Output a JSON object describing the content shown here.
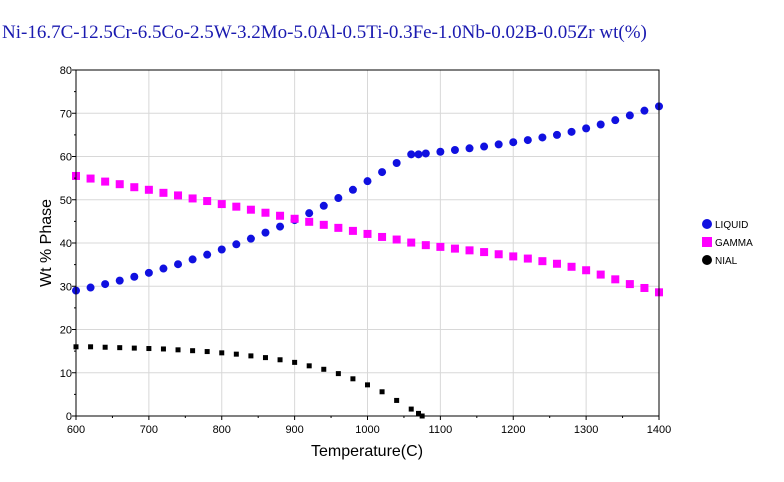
{
  "colors": {
    "title": "#1a1ab0",
    "grid": "#d8d8d8",
    "axis": "#000000",
    "liquid": "#1010e0",
    "gamma": "#ff00ff",
    "nial": "#000000"
  },
  "chart_data": {
    "type": "scatter",
    "title": "Ni-16.7C-12.5Cr-6.5Co-2.5W-3.2Mo-5.0Al-0.5Ti-0.3Fe-1.0Nb-0.02B-0.05Zr wt(%)",
    "xlabel": "Temperature(C)",
    "ylabel": "Wt % Phase",
    "xlim": [
      600,
      1400
    ],
    "ylim": [
      0,
      80
    ],
    "xticks": [
      "600",
      "700",
      "800",
      "900",
      "1000",
      "1100",
      "1200",
      "1300",
      "1400"
    ],
    "yticks": [
      "0",
      "10",
      "20",
      "30",
      "40",
      "50",
      "60",
      "70",
      "80"
    ],
    "grid": true,
    "legend_position": "right",
    "series": [
      {
        "name": "LIQUID",
        "marker": "circle",
        "color": "#1010e0",
        "x": [
          600,
          620,
          640,
          660,
          680,
          700,
          720,
          740,
          760,
          780,
          800,
          820,
          840,
          860,
          880,
          900,
          920,
          940,
          960,
          980,
          1000,
          1020,
          1040,
          1060,
          1070,
          1080,
          1100,
          1120,
          1140,
          1160,
          1180,
          1200,
          1220,
          1240,
          1260,
          1280,
          1300,
          1320,
          1340,
          1360,
          1380,
          1400
        ],
        "y": [
          29.0,
          29.7,
          30.5,
          31.3,
          32.2,
          33.1,
          34.1,
          35.1,
          36.2,
          37.3,
          38.5,
          39.7,
          41.0,
          42.4,
          43.8,
          45.3,
          46.9,
          48.6,
          50.4,
          52.3,
          54.3,
          56.4,
          58.5,
          60.5,
          60.5,
          60.7,
          61.1,
          61.5,
          61.9,
          62.3,
          62.8,
          63.3,
          63.8,
          64.4,
          65.0,
          65.7,
          66.5,
          67.4,
          68.4,
          69.5,
          70.6,
          71.6
        ]
      },
      {
        "name": "GAMMA",
        "marker": "square",
        "color": "#ff00ff",
        "x": [
          600,
          620,
          640,
          660,
          680,
          700,
          720,
          740,
          760,
          780,
          800,
          820,
          840,
          860,
          880,
          900,
          920,
          940,
          960,
          980,
          1000,
          1020,
          1040,
          1060,
          1080,
          1100,
          1120,
          1140,
          1160,
          1180,
          1200,
          1220,
          1240,
          1260,
          1280,
          1300,
          1320,
          1340,
          1360,
          1380,
          1400
        ],
        "y": [
          55.5,
          54.9,
          54.2,
          53.6,
          52.9,
          52.3,
          51.6,
          51.0,
          50.3,
          49.7,
          49.0,
          48.4,
          47.7,
          47.0,
          46.3,
          45.6,
          44.9,
          44.2,
          43.5,
          42.8,
          42.1,
          41.4,
          40.8,
          40.1,
          39.5,
          39.1,
          38.7,
          38.3,
          37.9,
          37.4,
          36.9,
          36.4,
          35.8,
          35.2,
          34.5,
          33.7,
          32.7,
          31.6,
          30.5,
          29.6,
          28.6
        ]
      },
      {
        "name": "NIAL",
        "marker": "square",
        "color": "#000000",
        "x": [
          600,
          620,
          640,
          660,
          680,
          700,
          720,
          740,
          760,
          780,
          800,
          820,
          840,
          860,
          880,
          900,
          920,
          940,
          960,
          980,
          1000,
          1020,
          1040,
          1060,
          1070,
          1075
        ],
        "y": [
          16.0,
          16.0,
          15.9,
          15.8,
          15.7,
          15.6,
          15.5,
          15.3,
          15.1,
          14.9,
          14.6,
          14.3,
          13.9,
          13.5,
          13.0,
          12.4,
          11.6,
          10.8,
          9.8,
          8.6,
          7.2,
          5.6,
          3.6,
          1.6,
          0.6,
          0.0
        ]
      }
    ]
  }
}
